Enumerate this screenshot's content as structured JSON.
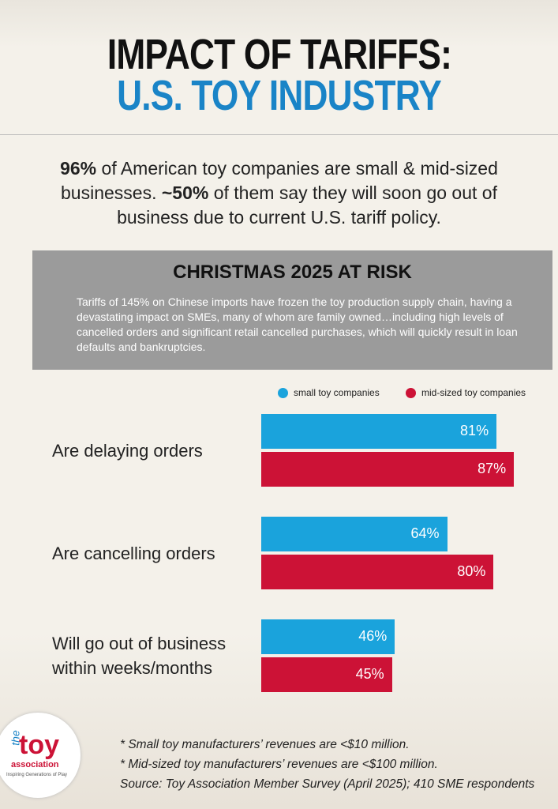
{
  "header": {
    "title_line1": "IMPACT OF TARIFFS:",
    "title_line2": "U.S. TOY INDUSTRY"
  },
  "intro": [
    "96%",
    " of American toy companies are small & mid-sized businesses. ",
    "~50%",
    " of them say they will soon go out of business due to current U.S. tariff policy."
  ],
  "callout": {
    "title": "CHRISTMAS 2025 AT RISK",
    "text": "Tariffs of 145% on Chinese imports have frozen the toy production supply chain, having a devastating impact on SMEs, many of whom are family owned…including high levels of cancelled orders and significant retail cancelled purchases, which will quickly result in loan defaults and bankruptcies."
  },
  "chart_data": {
    "type": "hbar",
    "categories": [
      "Are delaying orders",
      "Are cancelling orders",
      "Will go out of business within weeks/months"
    ],
    "series": [
      {
        "name": "small toy companies",
        "color": "#1aa3dc",
        "values": [
          81,
          64,
          46
        ],
        "value_labels": [
          "81%",
          "64%",
          "46%"
        ]
      },
      {
        "name": "mid-sized toy companies",
        "color": "#cc1236",
        "values": [
          87,
          80,
          45
        ],
        "value_labels": [
          "87%",
          "80%",
          "45%"
        ]
      }
    ]
  },
  "footnotes": [
    "* Small toy manufacturers’ revenues are <$10 million.",
    "* Mid-sized toy manufacturers’  revenues are <$100 million.",
    "Source: Toy Association Member Survey (April 2025); 410 SME respondents"
  ],
  "logo": {
    "the": "the",
    "toy": "toy",
    "association": "association",
    "tagline": "Inspiring Generations of Play"
  }
}
